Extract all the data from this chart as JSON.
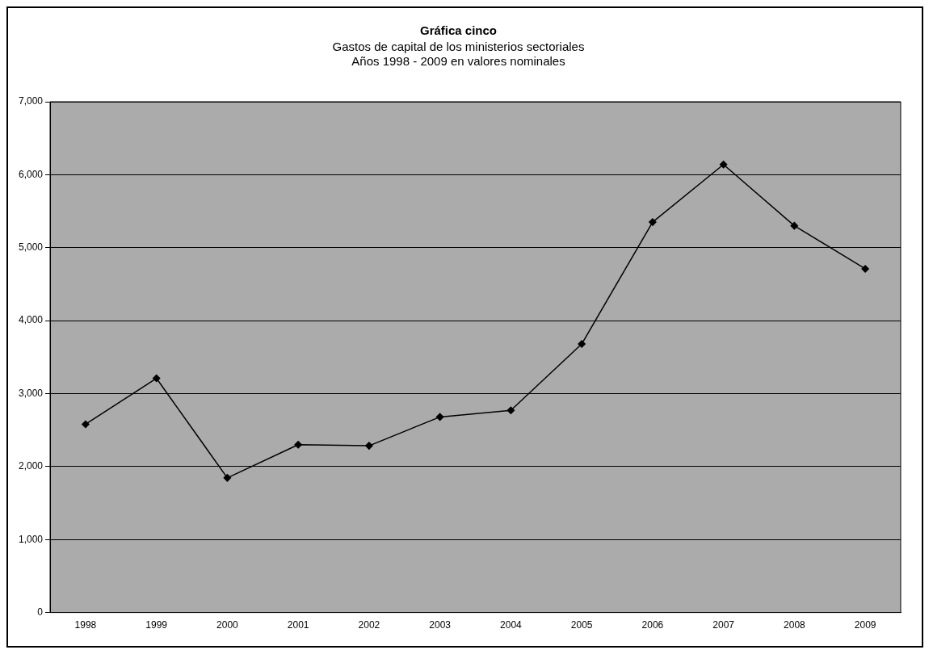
{
  "chart_data": {
    "type": "line",
    "title": "Gráfica cinco",
    "subtitle": [
      "Gastos de capital de los ministerios sectoriales",
      "Años 1998 - 2009 en valores nominales"
    ],
    "categories": [
      "1998",
      "1999",
      "2000",
      "2001",
      "2002",
      "2003",
      "2004",
      "2005",
      "2006",
      "2007",
      "2008",
      "2009"
    ],
    "series": [
      {
        "color": "#000000",
        "values": [
          2580,
          3210,
          1845,
          2300,
          2285,
          2680,
          2770,
          3680,
          5350,
          6140,
          5300,
          4710
        ]
      }
    ],
    "ylim": [
      0,
      7000
    ],
    "yticks": [
      {
        "value": 0,
        "label": "0"
      },
      {
        "value": 1000,
        "label": "1,000"
      },
      {
        "value": 2000,
        "label": "2,000"
      },
      {
        "value": 3000,
        "label": "3,000"
      },
      {
        "value": 4000,
        "label": "4,000"
      },
      {
        "value": 5000,
        "label": "5,000"
      },
      {
        "value": 6000,
        "label": "6,000"
      },
      {
        "value": 7000,
        "label": "7,000"
      }
    ],
    "grid": "y",
    "marker": "diamond",
    "line_style": "solid",
    "legend": false
  }
}
